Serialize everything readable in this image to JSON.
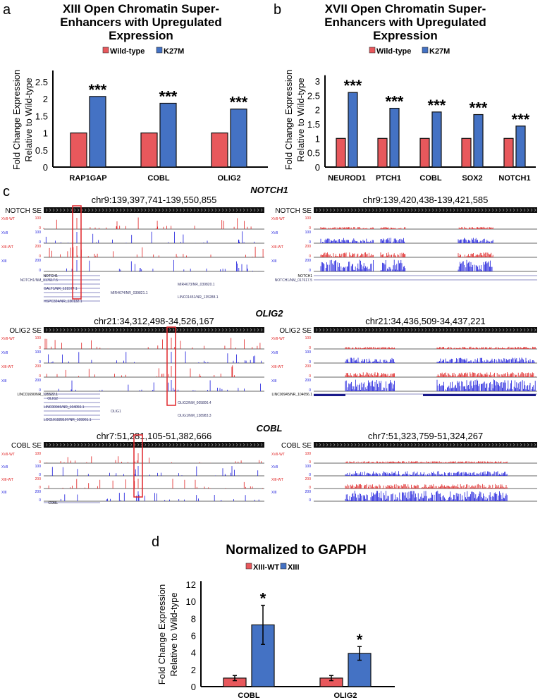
{
  "colors": {
    "red": "#e8585c",
    "blue": "#4472c4",
    "track_red": "#e02020",
    "track_blue": "#1a1adc",
    "box": "#e0262b"
  },
  "panel_labels": {
    "a": "a",
    "b": "b",
    "c": "c",
    "d": "d"
  },
  "chart_data": [
    {
      "type": "bar",
      "title": [
        "XIII Open Chromatin Super-",
        "Enhancers with Upregulated",
        "Expression"
      ],
      "legend": [
        "Wild-type",
        "K27M"
      ],
      "legend_position": "top",
      "ylabel": [
        "Fold Change Expression",
        "Relative to Wild-type"
      ],
      "yticks": [
        "0",
        "0.5",
        "1",
        "1.5",
        "2",
        "2.5"
      ],
      "ylim": [
        0,
        2.5
      ],
      "categories": [
        "RAP1GAP",
        "COBL",
        "OLIG2"
      ],
      "series": [
        {
          "name": "Wild-type",
          "values": [
            1,
            1,
            1
          ]
        },
        {
          "name": "K27M",
          "values": [
            2.07,
            1.87,
            1.7
          ]
        }
      ],
      "annotations": [
        "***",
        "***",
        "***"
      ]
    },
    {
      "type": "bar",
      "title": [
        "XVII Open Chromatin Super-",
        "Enhancers with Upregulated",
        "Expression"
      ],
      "legend": [
        "Wild-type",
        "K27M"
      ],
      "legend_position": "top",
      "ylabel": [
        "Fold Change Expression",
        "Relative to Wild-type"
      ],
      "yticks": [
        "0",
        "0.5",
        "1",
        "1.5",
        "2",
        "2.5",
        "3"
      ],
      "ylim": [
        0,
        3
      ],
      "categories": [
        "NEUROD1",
        "PTCH1",
        "COBL",
        "SOX2",
        "NOTCH1"
      ],
      "series": [
        {
          "name": "Wild-type",
          "values": [
            1,
            1,
            1,
            1,
            1
          ]
        },
        {
          "name": "K27M",
          "values": [
            2.6,
            2.05,
            1.92,
            1.83,
            1.43
          ]
        }
      ],
      "annotations": [
        "***",
        "***",
        "***",
        "***",
        "***"
      ]
    },
    {
      "type": "bar",
      "title": [
        "Normalized to GAPDH"
      ],
      "legend": [
        "XIII-WT",
        "XIII"
      ],
      "legend_position": "top",
      "ylabel": [
        "Fold Change Expression",
        "Relative to Wild-type"
      ],
      "yticks": [
        "0",
        "2",
        "4",
        "6",
        "8",
        "10",
        "12"
      ],
      "ylim": [
        0,
        12
      ],
      "categories": [
        "COBL",
        "OLIG2"
      ],
      "series": [
        {
          "name": "XIII-WT",
          "values": [
            1,
            1
          ],
          "error": [
            0.3,
            0.3
          ]
        },
        {
          "name": "XIII",
          "values": [
            7.25,
            3.9
          ],
          "error": [
            2.3,
            0.8
          ]
        }
      ],
      "annotations": [
        "*",
        "*"
      ]
    }
  ],
  "genome_tracks": {
    "track_labels": [
      "XVII-WT",
      "XVII",
      "XIII-WT",
      "XIII"
    ],
    "scales": [
      [
        "100",
        "0"
      ],
      [
        "100",
        "0"
      ],
      [
        "200",
        "0"
      ],
      [
        "200",
        "0"
      ]
    ],
    "loci": [
      {
        "gene": "NOTCH1",
        "left": {
          "se_label": "NOTCH SE",
          "region": "chr9:139,397,741-139,550,855",
          "genes": [
            "NOTCH1",
            "NOTCH1/NM_017617.5",
            "MIR4673/NR_039820.1",
            "GALT1/NR_121577.1",
            "MIR4674/NR_039821.1",
            "LINC01451/NR_135288.1",
            "HSPC324/NR_130132.1"
          ]
        },
        "right": {
          "se_label": "NOTCH SE",
          "region": "chr9:139,420,438-139,421,585",
          "genes": [
            "NOTCH1",
            "NOTCH1/NM_017617.5"
          ]
        }
      },
      {
        "gene": "OLIG2",
        "left": {
          "se_label": "OLIG2 SE",
          "region": "chr21:34,312,498-34,526,167",
          "genes": [
            "LINC01690/NR_135522.1",
            "OLIG2",
            "OLIG2/NM_005806.4",
            "LINC00945/NR_104056.1",
            "OLIG1",
            "OLIG1/NM_138983.3",
            "LOC101928107/NR_109961.1"
          ]
        },
        "right": {
          "se_label": "OLIG2 SE",
          "region": "chr21:34,436,509-34,437,221",
          "genes": [
            "LINC00945/NR_104056.1"
          ]
        }
      },
      {
        "gene": "COBL",
        "left": {
          "se_label": "COBL SE",
          "region": "chr7:51,281,105-51,382,666",
          "genes": [
            "COBL"
          ]
        },
        "right": {
          "se_label": "COBL SE",
          "region": "chr7:51,323,759-51,324,267",
          "genes": []
        }
      }
    ]
  }
}
